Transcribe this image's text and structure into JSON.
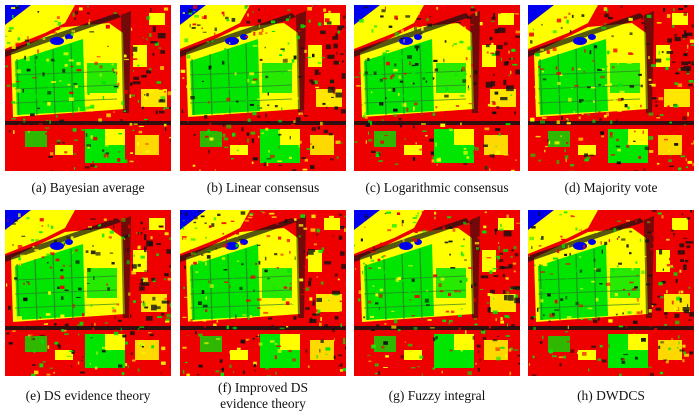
{
  "figure": {
    "palette": {
      "built_up": "#ee0000",
      "vegetation": "#00e600",
      "bare_soil": "#ffff00",
      "water": "#0000ee",
      "shadow_road": "#111111",
      "edge": "#2a7d2a"
    },
    "panels": [
      {
        "caption": "(a) Bayesian average"
      },
      {
        "caption": "(b) Linear consensus"
      },
      {
        "caption": "(c) Logarithmic consensus"
      },
      {
        "caption": "(d) Majority vote"
      },
      {
        "caption": "(e) DS evidence theory"
      },
      {
        "caption": "(f) Improved  DS\nevidence theory"
      },
      {
        "caption": "(g) Fuzzy integral"
      },
      {
        "caption": "(h) DWDCS"
      }
    ]
  }
}
